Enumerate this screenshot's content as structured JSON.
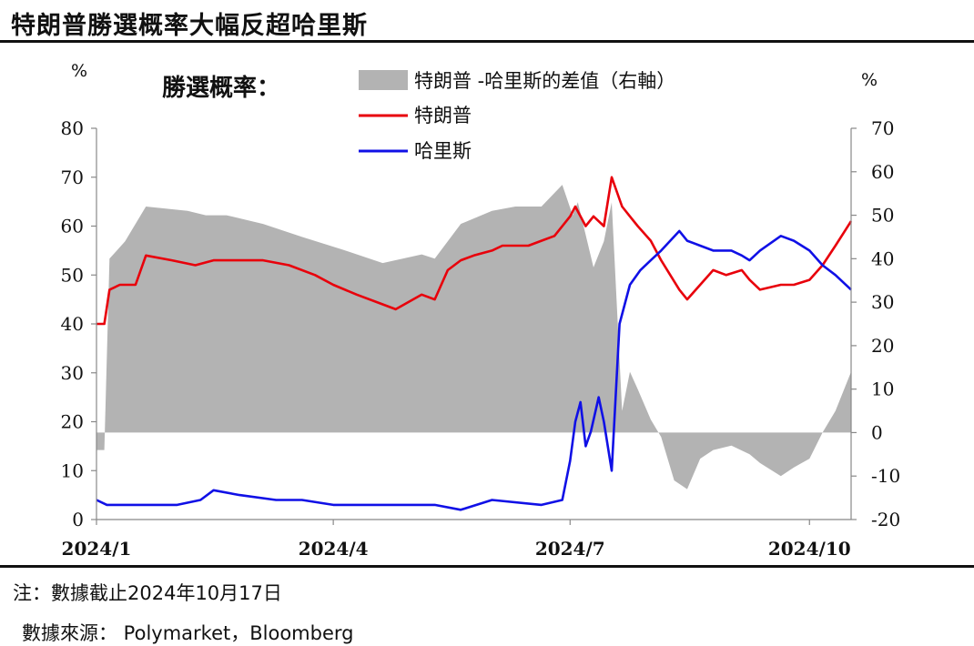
{
  "title": "特朗普勝選概率大幅反超哈里斯",
  "note": "注：數據截止2024年10月17日",
  "source": "數據來源： Polymarket，Bloomberg",
  "chart_data": {
    "type": "line",
    "legend_title": "勝選概率：",
    "left_unit": "%",
    "right_unit": "%",
    "ylim_left": [
      0,
      80
    ],
    "ylim_right": [
      -20,
      70
    ],
    "yticks_left": [
      "80",
      "70",
      "60",
      "50",
      "40",
      "30",
      "20",
      "10",
      "0"
    ],
    "yticks_right": [
      "70",
      "60",
      "50",
      "40",
      "30",
      "20",
      "10",
      "0",
      "-10",
      "-20"
    ],
    "xticks": [
      "2024/1",
      "2024/4",
      "2024/7",
      "2024/10"
    ],
    "x_range": [
      "2024-01-01",
      "2024-10-17"
    ],
    "legend_placement": "top-center",
    "grid": false,
    "series": [
      {
        "name": "特朗普 -哈里斯的差值（右軸）",
        "kind": "area",
        "axis": "right",
        "color": "#b3b3b3",
        "x": [
          "2024-01-01",
          "2024-01-04",
          "2024-01-06",
          "2024-01-12",
          "2024-01-20",
          "2024-02-05",
          "2024-02-12",
          "2024-02-20",
          "2024-03-05",
          "2024-03-20",
          "2024-04-05",
          "2024-04-20",
          "2024-05-05",
          "2024-05-10",
          "2024-05-20",
          "2024-06-01",
          "2024-06-10",
          "2024-06-20",
          "2024-06-28",
          "2024-07-02",
          "2024-07-04",
          "2024-07-10",
          "2024-07-14",
          "2024-07-17",
          "2024-07-21",
          "2024-07-24",
          "2024-07-27",
          "2024-08-01",
          "2024-08-05",
          "2024-08-10",
          "2024-08-15",
          "2024-08-20",
          "2024-08-25",
          "2024-09-01",
          "2024-09-08",
          "2024-09-12",
          "2024-09-20",
          "2024-09-25",
          "2024-10-01",
          "2024-10-06",
          "2024-10-11",
          "2024-10-17"
        ],
        "values": [
          -4,
          -4,
          40,
          44,
          52,
          51,
          50,
          50,
          48,
          45,
          42,
          39,
          41,
          40,
          48,
          51,
          52,
          52,
          57,
          50,
          53,
          38,
          44,
          53,
          5,
          14,
          10,
          3,
          -1,
          -11,
          -13,
          -6,
          -4,
          -3,
          -5,
          -7,
          -10,
          -8,
          -6,
          0,
          5,
          14
        ]
      },
      {
        "name": "特朗普",
        "kind": "line",
        "axis": "left",
        "color": "#e8000b",
        "x": [
          "2024-01-01",
          "2024-01-04",
          "2024-01-06",
          "2024-01-10",
          "2024-01-13",
          "2024-01-16",
          "2024-01-20",
          "2024-01-30",
          "2024-02-08",
          "2024-02-15",
          "2024-02-25",
          "2024-03-05",
          "2024-03-15",
          "2024-03-25",
          "2024-04-01",
          "2024-04-10",
          "2024-04-20",
          "2024-04-25",
          "2024-05-05",
          "2024-05-10",
          "2024-05-15",
          "2024-05-20",
          "2024-05-25",
          "2024-06-01",
          "2024-06-05",
          "2024-06-15",
          "2024-06-20",
          "2024-06-25",
          "2024-07-01",
          "2024-07-03",
          "2024-07-07",
          "2024-07-10",
          "2024-07-14",
          "2024-07-17",
          "2024-07-21",
          "2024-07-24",
          "2024-07-27",
          "2024-08-01",
          "2024-08-05",
          "2024-08-12",
          "2024-08-15",
          "2024-08-20",
          "2024-08-25",
          "2024-08-30",
          "2024-09-05",
          "2024-09-08",
          "2024-09-12",
          "2024-09-20",
          "2024-09-25",
          "2024-10-01",
          "2024-10-06",
          "2024-10-11",
          "2024-10-17"
        ],
        "values": [
          40,
          40,
          47,
          48,
          48,
          48,
          54,
          53,
          52,
          53,
          53,
          53,
          52,
          50,
          48,
          46,
          44,
          43,
          46,
          45,
          51,
          53,
          54,
          55,
          56,
          56,
          57,
          58,
          62,
          64,
          60,
          62,
          60,
          70,
          64,
          62,
          60,
          57,
          53,
          47,
          45,
          48,
          51,
          50,
          51,
          49,
          47,
          48,
          48,
          49,
          52,
          56,
          61
        ]
      },
      {
        "name": "哈里斯",
        "kind": "line",
        "axis": "left",
        "color": "#1010e6",
        "x": [
          "2024-01-01",
          "2024-01-05",
          "2024-01-20",
          "2024-02-01",
          "2024-02-10",
          "2024-02-15",
          "2024-02-25",
          "2024-03-10",
          "2024-03-20",
          "2024-04-01",
          "2024-04-20",
          "2024-05-10",
          "2024-05-20",
          "2024-06-01",
          "2024-06-20",
          "2024-06-28",
          "2024-07-01",
          "2024-07-03",
          "2024-07-05",
          "2024-07-07",
          "2024-07-09",
          "2024-07-12",
          "2024-07-14",
          "2024-07-17",
          "2024-07-20",
          "2024-07-24",
          "2024-07-28",
          "2024-08-01",
          "2024-08-05",
          "2024-08-12",
          "2024-08-15",
          "2024-08-20",
          "2024-08-25",
          "2024-09-01",
          "2024-09-05",
          "2024-09-08",
          "2024-09-12",
          "2024-09-20",
          "2024-09-25",
          "2024-10-01",
          "2024-10-06",
          "2024-10-11",
          "2024-10-17"
        ],
        "values": [
          4,
          3,
          3,
          3,
          4,
          6,
          5,
          4,
          4,
          3,
          3,
          3,
          2,
          4,
          3,
          4,
          12,
          20,
          24,
          15,
          18,
          25,
          20,
          10,
          40,
          48,
          51,
          53,
          55,
          59,
          57,
          56,
          55,
          55,
          54,
          53,
          55,
          58,
          57,
          55,
          52,
          50,
          47
        ]
      }
    ]
  }
}
